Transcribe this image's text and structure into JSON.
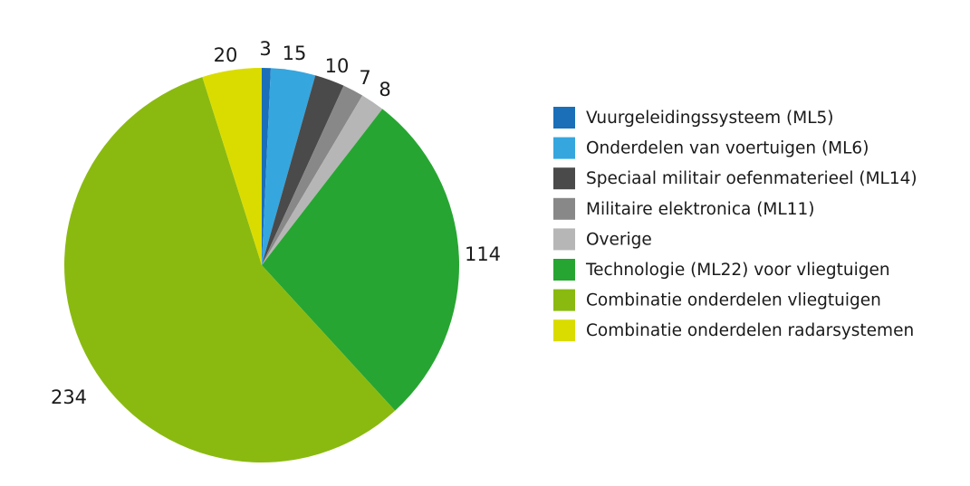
{
  "chart_data": {
    "type": "pie",
    "title": "",
    "start_angle_deg": 0,
    "direction": "clockwise",
    "legend_position": "right",
    "slices": [
      {
        "label": "Vuurgeleidingssysteem (ML5)",
        "value": 3,
        "color": "#1a6fb8"
      },
      {
        "label": "Onderdelen van voertuigen (ML6)",
        "value": 15,
        "color": "#36a6de"
      },
      {
        "label": "Speciaal militair oefenmaterieel (ML14)",
        "value": 10,
        "color": "#4a4a4a"
      },
      {
        "label": "Militaire elektronica (ML11)",
        "value": 7,
        "color": "#888888"
      },
      {
        "label": "Overige",
        "value": 8,
        "color": "#b6b6b6"
      },
      {
        "label": "Technologie (ML22) voor vliegtuigen",
        "value": 114,
        "color": "#27a532"
      },
      {
        "label": "Combinatie onderdelen vliegtuigen",
        "value": 234,
        "color": "#8aba10"
      },
      {
        "label": "Combinatie onderdelen radarsystemen",
        "value": 20,
        "color": "#dadc00"
      }
    ]
  }
}
